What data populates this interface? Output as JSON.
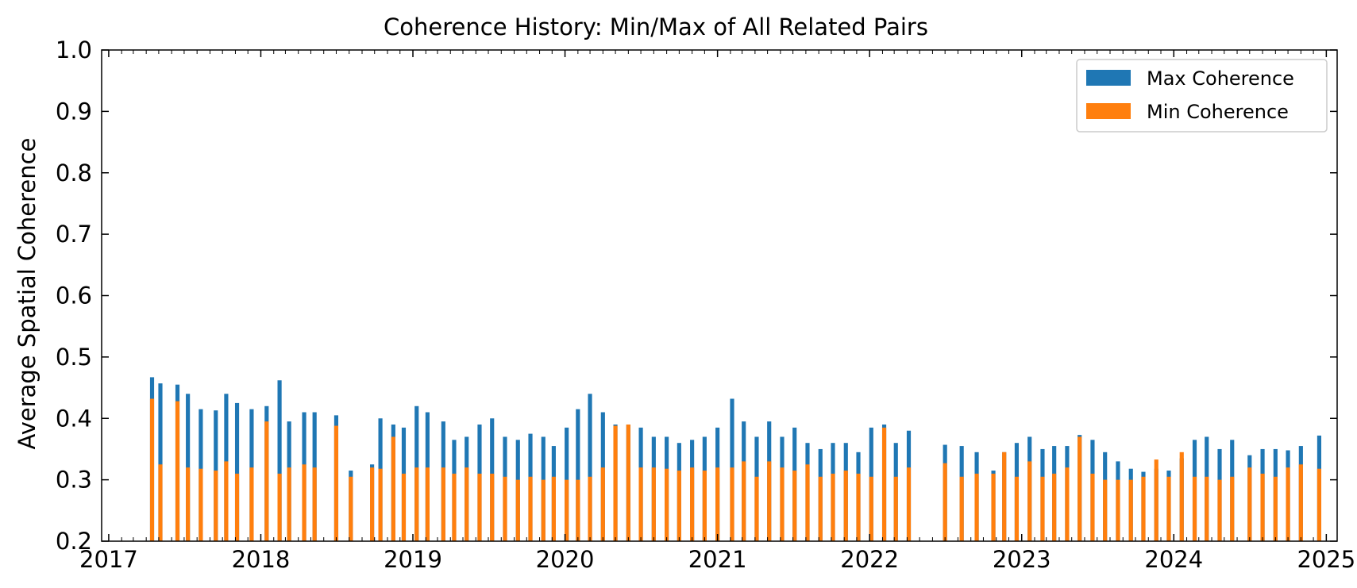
{
  "chart_data": {
    "type": "bar",
    "title": "Coherence History: Min/Max of All Related Pairs",
    "xlabel": "",
    "ylabel": "Average Spatial Coherence",
    "xlim": [
      "2016-12-15",
      "2025-01-27"
    ],
    "ylim": [
      0.2,
      1.0
    ],
    "yticks": [
      0.2,
      0.3,
      0.4,
      0.5,
      0.6,
      0.7,
      0.8,
      0.9,
      1.0
    ],
    "ytick_labels": [
      "0.2",
      "0.3",
      "0.4",
      "0.5",
      "0.6",
      "0.7",
      "0.8",
      "0.9",
      "1.0"
    ],
    "xticks": [
      "2017-01-01",
      "2018-01-01",
      "2019-01-01",
      "2020-01-01",
      "2021-01-01",
      "2022-01-01",
      "2023-01-01",
      "2024-01-01",
      "2025-01-01"
    ],
    "xtick_labels": [
      "2017",
      "2018",
      "2019",
      "2020",
      "2021",
      "2022",
      "2023",
      "2024",
      "2025"
    ],
    "grid": false,
    "legend_position": "top-right",
    "bar_spacing_days": 12,
    "series": [
      {
        "name": "Max Coherence",
        "color": "#1f77b4",
        "points": [
          [
            "2017-04-15",
            0.467
          ],
          [
            "2017-05-05",
            0.457
          ],
          [
            "2017-06-15",
            0.455
          ],
          [
            "2017-07-10",
            0.44
          ],
          [
            "2017-08-10",
            0.415
          ],
          [
            "2017-09-15",
            0.413
          ],
          [
            "2017-10-10",
            0.44
          ],
          [
            "2017-11-05",
            0.425
          ],
          [
            "2017-12-10",
            0.415
          ],
          [
            "2018-01-15",
            0.42
          ],
          [
            "2018-02-15",
            0.462
          ],
          [
            "2018-03-10",
            0.395
          ],
          [
            "2018-04-15",
            0.41
          ],
          [
            "2018-05-10",
            0.41
          ],
          [
            "2018-07-01",
            0.405
          ],
          [
            "2018-08-05",
            0.315
          ],
          [
            "2018-09-25",
            0.325
          ],
          [
            "2018-10-15",
            0.4
          ],
          [
            "2018-11-15",
            0.39
          ],
          [
            "2018-12-10",
            0.385
          ],
          [
            "2019-01-10",
            0.42
          ],
          [
            "2019-02-05",
            0.41
          ],
          [
            "2019-03-15",
            0.395
          ],
          [
            "2019-04-10",
            0.365
          ],
          [
            "2019-05-10",
            0.37
          ],
          [
            "2019-06-10",
            0.39
          ],
          [
            "2019-07-10",
            0.4
          ],
          [
            "2019-08-10",
            0.37
          ],
          [
            "2019-09-10",
            0.365
          ],
          [
            "2019-10-10",
            0.375
          ],
          [
            "2019-11-10",
            0.37
          ],
          [
            "2019-12-05",
            0.355
          ],
          [
            "2020-01-05",
            0.385
          ],
          [
            "2020-02-01",
            0.415
          ],
          [
            "2020-03-01",
            0.44
          ],
          [
            "2020-04-01",
            0.41
          ],
          [
            "2020-05-01",
            0.39
          ],
          [
            "2020-06-01",
            0.39
          ],
          [
            "2020-07-01",
            0.385
          ],
          [
            "2020-08-01",
            0.37
          ],
          [
            "2020-09-01",
            0.37
          ],
          [
            "2020-10-01",
            0.36
          ],
          [
            "2020-11-01",
            0.365
          ],
          [
            "2020-12-01",
            0.37
          ],
          [
            "2021-01-01",
            0.385
          ],
          [
            "2021-02-05",
            0.432
          ],
          [
            "2021-03-05",
            0.395
          ],
          [
            "2021-04-05",
            0.37
          ],
          [
            "2021-05-05",
            0.395
          ],
          [
            "2021-06-05",
            0.37
          ],
          [
            "2021-07-05",
            0.385
          ],
          [
            "2021-08-05",
            0.36
          ],
          [
            "2021-09-05",
            0.35
          ],
          [
            "2021-10-05",
            0.36
          ],
          [
            "2021-11-05",
            0.36
          ],
          [
            "2021-12-05",
            0.345
          ],
          [
            "2022-01-05",
            0.385
          ],
          [
            "2022-02-05",
            0.39
          ],
          [
            "2022-03-05",
            0.36
          ],
          [
            "2022-04-05",
            0.38
          ],
          [
            "2022-07-01",
            0.357
          ],
          [
            "2022-08-10",
            0.355
          ],
          [
            "2022-09-15",
            0.345
          ],
          [
            "2022-10-25",
            0.315
          ],
          [
            "2022-11-20",
            0.345
          ],
          [
            "2022-12-20",
            0.36
          ],
          [
            "2023-01-20",
            0.37
          ],
          [
            "2023-02-20",
            0.35
          ],
          [
            "2023-03-20",
            0.355
          ],
          [
            "2023-04-20",
            0.355
          ],
          [
            "2023-05-20",
            0.373
          ],
          [
            "2023-06-20",
            0.365
          ],
          [
            "2023-07-20",
            0.345
          ],
          [
            "2023-08-20",
            0.33
          ],
          [
            "2023-09-20",
            0.318
          ],
          [
            "2023-10-20",
            0.313
          ],
          [
            "2023-11-20",
            0.318
          ],
          [
            "2023-12-20",
            0.315
          ],
          [
            "2024-01-20",
            0.335
          ],
          [
            "2024-02-20",
            0.365
          ],
          [
            "2024-03-20",
            0.37
          ],
          [
            "2024-04-20",
            0.35
          ],
          [
            "2024-05-20",
            0.365
          ],
          [
            "2024-07-01",
            0.34
          ],
          [
            "2024-08-01",
            0.35
          ],
          [
            "2024-09-01",
            0.35
          ],
          [
            "2024-10-01",
            0.348
          ],
          [
            "2024-11-01",
            0.355
          ],
          [
            "2024-12-15",
            0.372
          ]
        ]
      },
      {
        "name": "Min Coherence",
        "color": "#ff7f0e",
        "points": [
          [
            "2017-04-15",
            0.432
          ],
          [
            "2017-05-05",
            0.325
          ],
          [
            "2017-06-15",
            0.428
          ],
          [
            "2017-07-10",
            0.32
          ],
          [
            "2017-08-10",
            0.318
          ],
          [
            "2017-09-15",
            0.315
          ],
          [
            "2017-10-10",
            0.33
          ],
          [
            "2017-11-05",
            0.31
          ],
          [
            "2017-12-10",
            0.32
          ],
          [
            "2018-01-15",
            0.395
          ],
          [
            "2018-02-15",
            0.31
          ],
          [
            "2018-03-10",
            0.32
          ],
          [
            "2018-04-15",
            0.325
          ],
          [
            "2018-05-10",
            0.32
          ],
          [
            "2018-07-01",
            0.388
          ],
          [
            "2018-08-05",
            0.305
          ],
          [
            "2018-09-25",
            0.32
          ],
          [
            "2018-10-15",
            0.318
          ],
          [
            "2018-11-15",
            0.37
          ],
          [
            "2018-12-10",
            0.31
          ],
          [
            "2019-01-10",
            0.32
          ],
          [
            "2019-02-05",
            0.32
          ],
          [
            "2019-03-15",
            0.32
          ],
          [
            "2019-04-10",
            0.31
          ],
          [
            "2019-05-10",
            0.32
          ],
          [
            "2019-06-10",
            0.31
          ],
          [
            "2019-07-10",
            0.31
          ],
          [
            "2019-08-10",
            0.305
          ],
          [
            "2019-09-10",
            0.3
          ],
          [
            "2019-10-10",
            0.305
          ],
          [
            "2019-11-10",
            0.3
          ],
          [
            "2019-12-05",
            0.305
          ],
          [
            "2020-01-05",
            0.3
          ],
          [
            "2020-02-01",
            0.3
          ],
          [
            "2020-03-01",
            0.305
          ],
          [
            "2020-04-01",
            0.32
          ],
          [
            "2020-05-01",
            0.388
          ],
          [
            "2020-06-01",
            0.39
          ],
          [
            "2020-07-01",
            0.32
          ],
          [
            "2020-08-01",
            0.32
          ],
          [
            "2020-09-01",
            0.318
          ],
          [
            "2020-10-01",
            0.315
          ],
          [
            "2020-11-01",
            0.32
          ],
          [
            "2020-12-01",
            0.315
          ],
          [
            "2021-01-01",
            0.32
          ],
          [
            "2021-02-05",
            0.32
          ],
          [
            "2021-03-05",
            0.33
          ],
          [
            "2021-04-05",
            0.305
          ],
          [
            "2021-05-05",
            0.33
          ],
          [
            "2021-06-05",
            0.32
          ],
          [
            "2021-07-05",
            0.315
          ],
          [
            "2021-08-05",
            0.325
          ],
          [
            "2021-09-05",
            0.305
          ],
          [
            "2021-10-05",
            0.31
          ],
          [
            "2021-11-05",
            0.315
          ],
          [
            "2021-12-05",
            0.31
          ],
          [
            "2022-01-05",
            0.305
          ],
          [
            "2022-02-05",
            0.385
          ],
          [
            "2022-03-05",
            0.305
          ],
          [
            "2022-04-05",
            0.32
          ],
          [
            "2022-07-01",
            0.327
          ],
          [
            "2022-08-10",
            0.305
          ],
          [
            "2022-09-15",
            0.31
          ],
          [
            "2022-10-25",
            0.31
          ],
          [
            "2022-11-20",
            0.345
          ],
          [
            "2022-12-20",
            0.305
          ],
          [
            "2023-01-20",
            0.33
          ],
          [
            "2023-02-20",
            0.305
          ],
          [
            "2023-03-20",
            0.31
          ],
          [
            "2023-04-20",
            0.32
          ],
          [
            "2023-05-20",
            0.37
          ],
          [
            "2023-06-20",
            0.31
          ],
          [
            "2023-07-20",
            0.3
          ],
          [
            "2023-08-20",
            0.3
          ],
          [
            "2023-09-20",
            0.3
          ],
          [
            "2023-10-20",
            0.305
          ],
          [
            "2023-11-20",
            0.333
          ],
          [
            "2023-12-20",
            0.305
          ],
          [
            "2024-01-20",
            0.345
          ],
          [
            "2024-02-20",
            0.305
          ],
          [
            "2024-03-20",
            0.305
          ],
          [
            "2024-04-20",
            0.3
          ],
          [
            "2024-05-20",
            0.305
          ],
          [
            "2024-07-01",
            0.32
          ],
          [
            "2024-08-01",
            0.31
          ],
          [
            "2024-09-01",
            0.305
          ],
          [
            "2024-10-01",
            0.32
          ],
          [
            "2024-11-01",
            0.325
          ],
          [
            "2024-12-15",
            0.318
          ]
        ]
      }
    ]
  }
}
